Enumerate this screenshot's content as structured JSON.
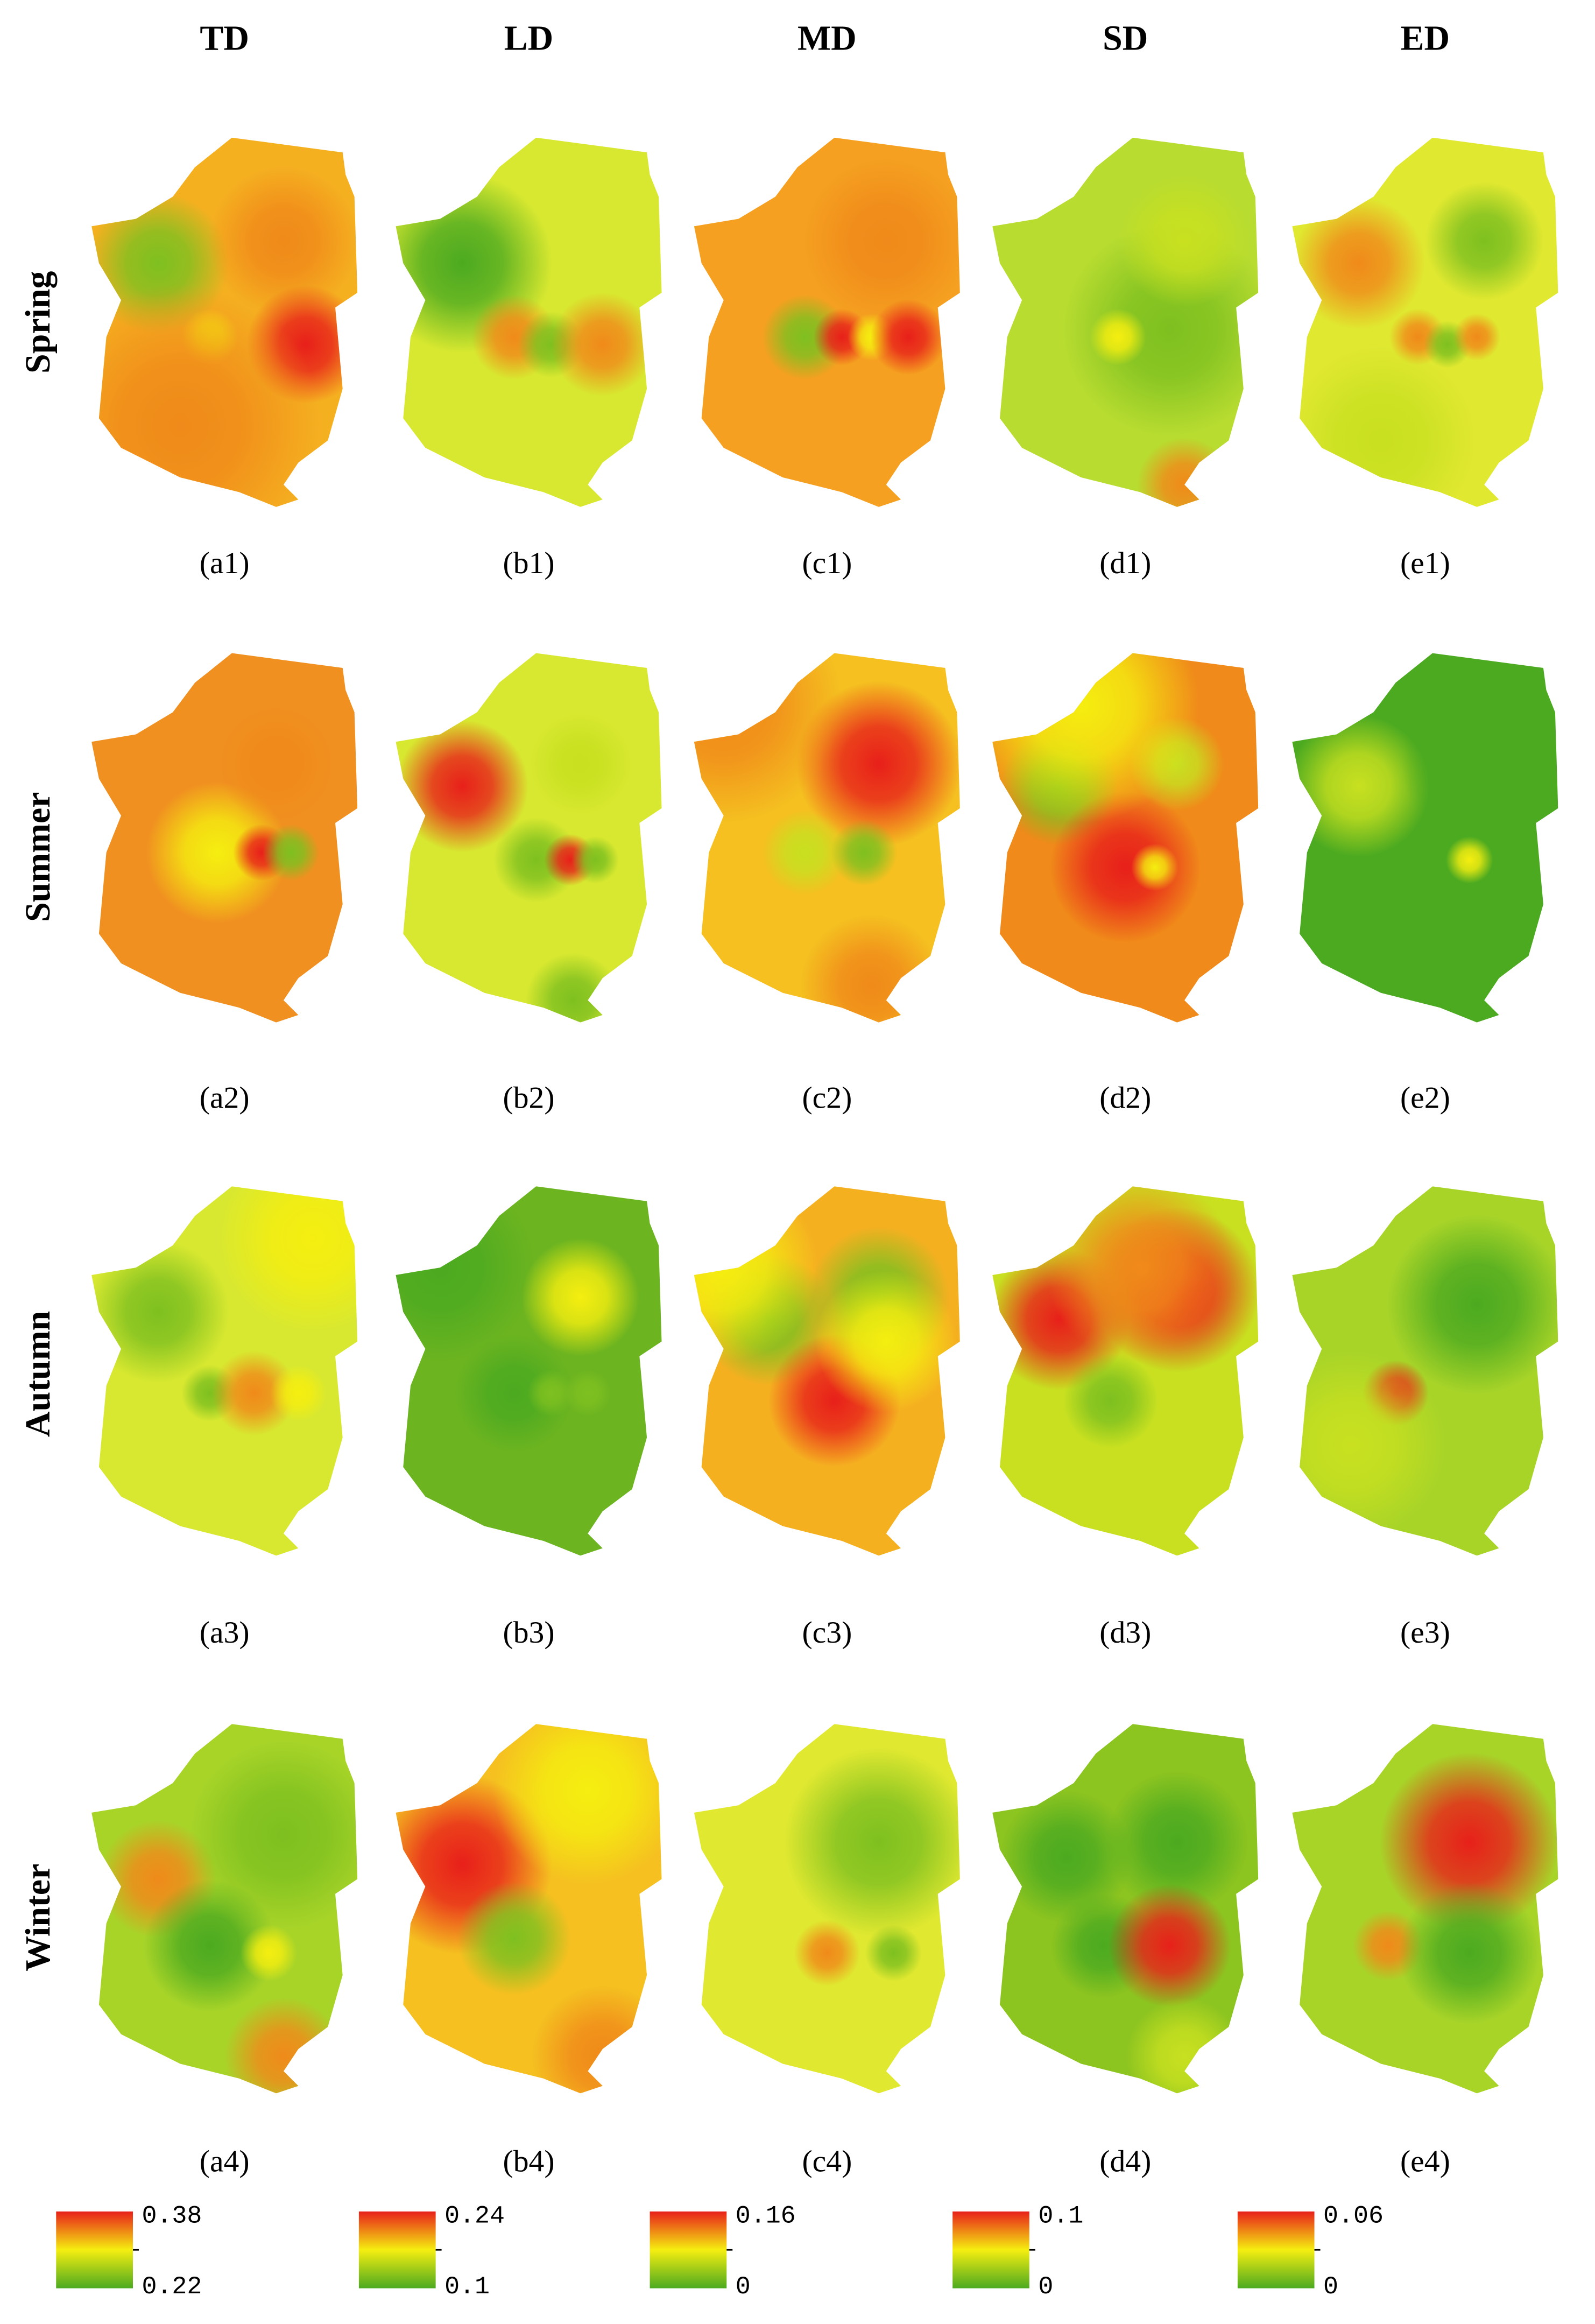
{
  "columns": [
    "TD",
    "LD",
    "MD",
    "SD",
    "ED"
  ],
  "rows": [
    "Spring",
    "Summer",
    "Autumn",
    "Winter"
  ],
  "panels": [
    [
      "(a1)",
      "(b1)",
      "(c1)",
      "(d1)",
      "(e1)"
    ],
    [
      "(a2)",
      "(b2)",
      "(c2)",
      "(d2)",
      "(e2)"
    ],
    [
      "(a3)",
      "(b3)",
      "(c3)",
      "(d3)",
      "(e3)"
    ],
    [
      "(a4)",
      "(b4)",
      "(c4)",
      "(d4)",
      "(e4)"
    ]
  ],
  "legends": [
    {
      "max": 0.38,
      "min": 0.22
    },
    {
      "max": 0.24,
      "min": 0.1
    },
    {
      "max": 0.16,
      "min": 0
    },
    {
      "max": 0.1,
      "min": 0
    },
    {
      "max": 0.06,
      "min": 0
    }
  ]
}
